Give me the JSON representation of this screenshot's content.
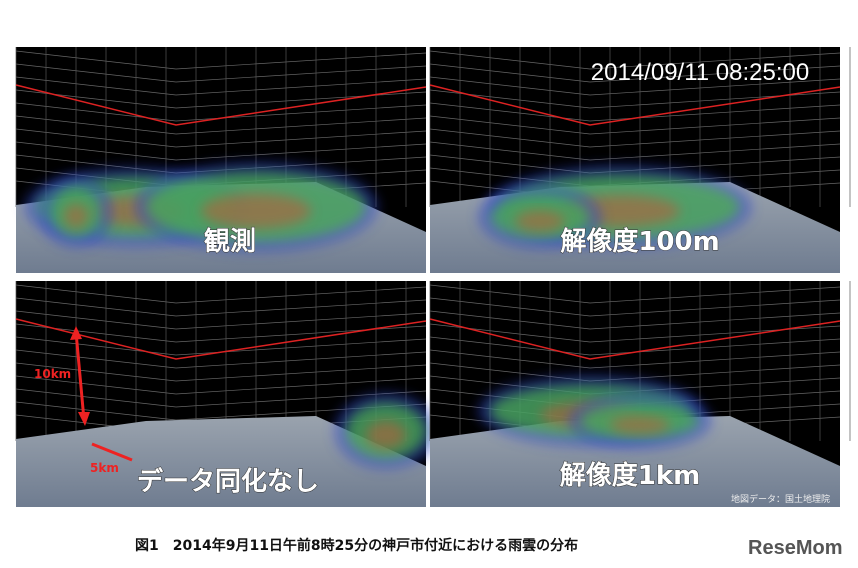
{
  "panels": [
    {
      "label": "観測"
    },
    {
      "label": "解像度100m",
      "timestamp": "2014/09/11 08:25:00"
    },
    {
      "label": "データ同化なし",
      "annotations": [
        "10km",
        "5km"
      ]
    },
    {
      "label": "解像度1km",
      "credit": "地図データ：国土地理院"
    }
  ],
  "caption": "図1　2014年9月11日午前8時25分の神戸市付近における雨雲の分布",
  "logo": "ReseMom"
}
